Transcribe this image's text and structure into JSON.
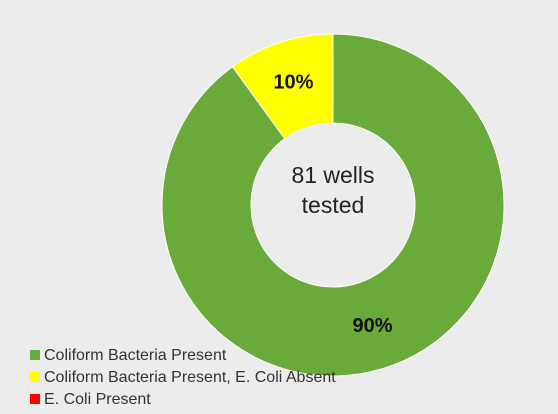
{
  "chart_data": {
    "type": "donut",
    "center_label": "81 wells tested",
    "categories": [
      "Coliform Bacteria Present",
      "Coliform Bacteria Present, E. Coli Absent",
      "E. Coli Present"
    ],
    "values": [
      90,
      10,
      0
    ],
    "value_labels": [
      "90%",
      "10%",
      null
    ],
    "colors": [
      "#6aaa3a",
      "#ffff00",
      "#ff0000"
    ],
    "legend": "bottom-left"
  }
}
